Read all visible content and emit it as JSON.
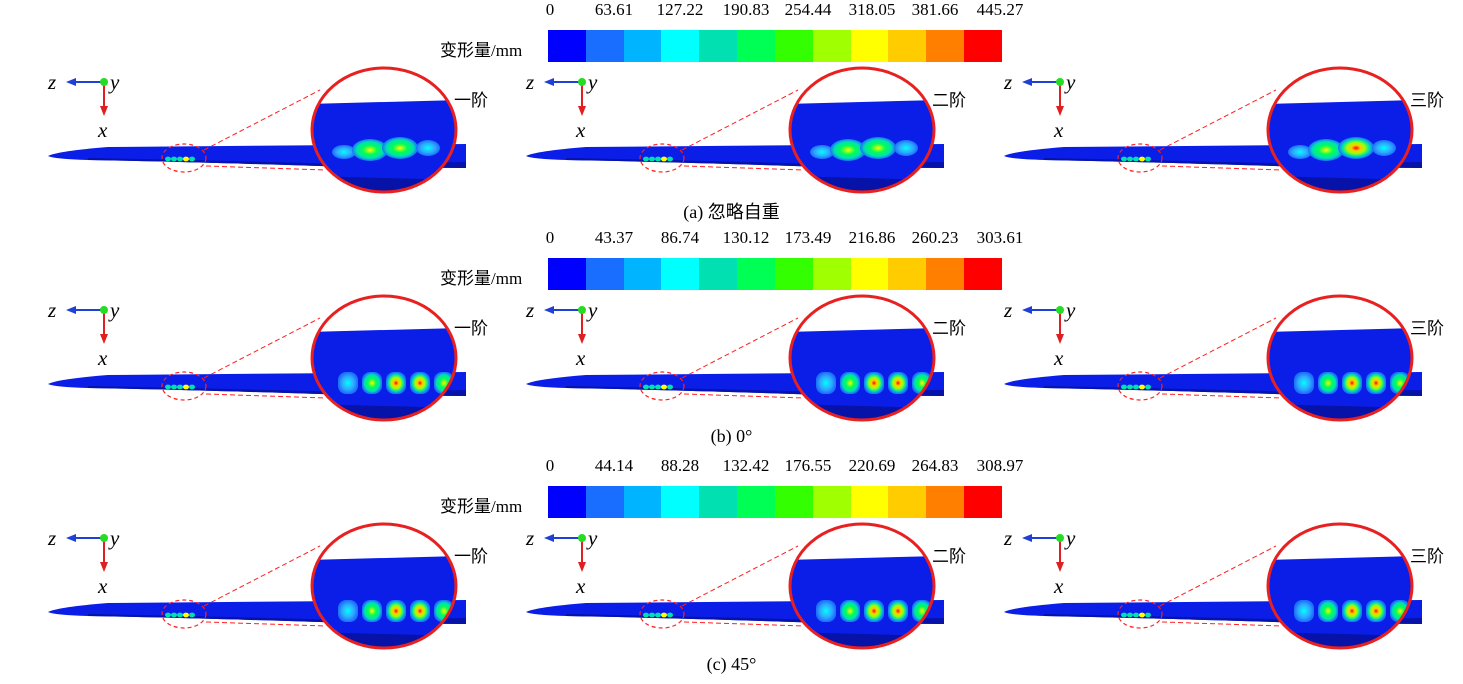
{
  "colorbar_colors": [
    "#0000ff",
    "#1a6eff",
    "#00b4ff",
    "#00ffff",
    "#00e0b0",
    "#00ff55",
    "#33ff00",
    "#a0ff00",
    "#ffff00",
    "#ffcc00",
    "#ff8000",
    "#ff0000"
  ],
  "axes_labels": {
    "z": "z",
    "y": "y",
    "x": "x"
  },
  "unit_label": "变形量/mm",
  "rows": [
    {
      "caption": "(a)  忽略自重",
      "ticks": [
        "0",
        "63.61",
        "127.22",
        "190.83",
        "254.44",
        "318.05",
        "381.66",
        "445.27"
      ],
      "modes": [
        "一阶",
        "二阶",
        "三阶"
      ]
    },
    {
      "caption": "(b) 0°",
      "ticks": [
        "0",
        "43.37",
        "86.74",
        "130.12",
        "173.49",
        "216.86",
        "260.23",
        "303.61"
      ],
      "modes": [
        "一阶",
        "二阶",
        "三阶"
      ]
    },
    {
      "caption": "(c) 45°",
      "ticks": [
        "0",
        "44.14",
        "88.28",
        "132.42",
        "176.55",
        "220.69",
        "264.83",
        "308.97"
      ],
      "modes": [
        "一阶",
        "二阶",
        "三阶"
      ]
    }
  ]
}
